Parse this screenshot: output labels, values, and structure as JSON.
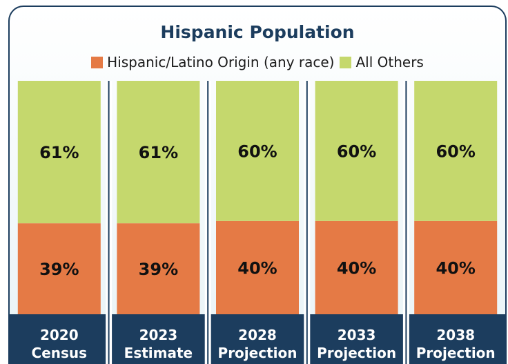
{
  "chart_data": {
    "type": "bar",
    "stacked": true,
    "title": "Hispanic Population",
    "categories": [
      [
        "2020",
        "Census"
      ],
      [
        "2023",
        "Estimate"
      ],
      [
        "2028",
        "Projection"
      ],
      [
        "2033",
        "Projection"
      ],
      [
        "2038",
        "Projection"
      ]
    ],
    "series": [
      {
        "name": "Hispanic/Latino Origin (any race)",
        "values": [
          39,
          39,
          40,
          40,
          40
        ],
        "labels": [
          "39%",
          "39%",
          "40%",
          "40%",
          "40%"
        ],
        "color": "#e57a45"
      },
      {
        "name": "All Others",
        "values": [
          61,
          61,
          60,
          60,
          60
        ],
        "labels": [
          "61%",
          "61%",
          "60%",
          "60%",
          "60%"
        ],
        "color": "#c5d86d"
      }
    ],
    "ylim": [
      0,
      100
    ],
    "legend_position": "top",
    "grid": false,
    "colors": {
      "title": "#1c3d5e",
      "category_band": "#1c3d5e",
      "divider": "#1c3d5e"
    }
  }
}
